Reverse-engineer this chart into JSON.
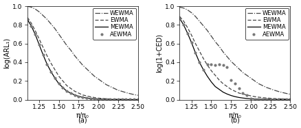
{
  "x": [
    1.1,
    1.15,
    1.2,
    1.25,
    1.3,
    1.35,
    1.4,
    1.45,
    1.5,
    1.55,
    1.6,
    1.65,
    1.7,
    1.75,
    1.8,
    1.85,
    1.9,
    1.95,
    2.0,
    2.05,
    2.1,
    2.15,
    2.2,
    2.25,
    2.3,
    2.35,
    2.4,
    2.45,
    2.5
  ],
  "ewma_a": [
    0.88,
    0.82,
    0.74,
    0.65,
    0.56,
    0.47,
    0.39,
    0.32,
    0.25,
    0.2,
    0.15,
    0.12,
    0.09,
    0.07,
    0.05,
    0.04,
    0.03,
    0.022,
    0.016,
    0.012,
    0.009,
    0.007,
    0.005,
    0.004,
    0.003,
    0.002,
    0.0015,
    0.001,
    0.0008
  ],
  "mewma_a": [
    0.86,
    0.79,
    0.7,
    0.59,
    0.48,
    0.38,
    0.3,
    0.23,
    0.17,
    0.13,
    0.09,
    0.07,
    0.05,
    0.035,
    0.025,
    0.017,
    0.012,
    0.008,
    0.006,
    0.004,
    0.003,
    0.002,
    0.0015,
    0.001,
    0.0008,
    0.0005,
    0.0004,
    0.0003,
    0.0002
  ],
  "wewma_a": [
    1.0,
    0.99,
    0.97,
    0.94,
    0.9,
    0.86,
    0.81,
    0.76,
    0.7,
    0.64,
    0.58,
    0.53,
    0.47,
    0.42,
    0.37,
    0.33,
    0.29,
    0.25,
    0.22,
    0.19,
    0.16,
    0.14,
    0.12,
    0.1,
    0.088,
    0.075,
    0.064,
    0.054,
    0.046
  ],
  "aewma_a": [
    0.86,
    0.79,
    0.7,
    0.59,
    0.48,
    0.38,
    0.3,
    0.23,
    0.17,
    0.13,
    0.09,
    0.07,
    0.05,
    0.035,
    0.025,
    0.017,
    0.012,
    0.008,
    0.006,
    0.004,
    0.003,
    0.002,
    0.0015,
    0.001,
    0.0008,
    0.0005,
    0.0004,
    0.0003,
    0.0002
  ],
  "ewma_b": [
    0.89,
    0.84,
    0.77,
    0.69,
    0.6,
    0.52,
    0.44,
    0.37,
    0.31,
    0.26,
    0.21,
    0.17,
    0.14,
    0.11,
    0.09,
    0.07,
    0.06,
    0.05,
    0.04,
    0.032,
    0.026,
    0.021,
    0.017,
    0.014,
    0.011,
    0.009,
    0.007,
    0.006,
    0.005
  ],
  "mewma_b": [
    0.87,
    0.8,
    0.71,
    0.61,
    0.5,
    0.4,
    0.32,
    0.25,
    0.19,
    0.14,
    0.11,
    0.08,
    0.06,
    0.044,
    0.032,
    0.023,
    0.017,
    0.012,
    0.009,
    0.007,
    0.005,
    0.004,
    0.003,
    0.002,
    0.0015,
    0.001,
    0.0008,
    0.0006,
    0.0005
  ],
  "wewma_b": [
    0.99,
    0.98,
    0.96,
    0.93,
    0.89,
    0.84,
    0.79,
    0.74,
    0.68,
    0.62,
    0.57,
    0.51,
    0.46,
    0.41,
    0.37,
    0.33,
    0.29,
    0.26,
    0.23,
    0.2,
    0.17,
    0.15,
    0.13,
    0.115,
    0.1,
    0.087,
    0.076,
    0.066,
    0.057
  ],
  "aewma_b_x": [
    1.1,
    1.15,
    1.2,
    1.25,
    1.3,
    1.35,
    1.4,
    1.45,
    1.5,
    1.55,
    1.6,
    1.65,
    1.7,
    1.75,
    1.8,
    1.85,
    1.9,
    1.95,
    2.0,
    2.05,
    2.1,
    2.15,
    2.2,
    2.25,
    2.3,
    2.35,
    2.4,
    2.45,
    2.5
  ],
  "aewma_b_y": [
    0.87,
    0.8,
    0.71,
    0.61,
    0.5,
    0.4,
    0.32,
    0.38,
    0.38,
    0.37,
    0.38,
    0.37,
    0.35,
    0.21,
    0.17,
    0.12,
    0.07,
    0.05,
    0.01,
    0.005,
    0.005,
    0.002,
    0.002,
    0.005,
    0.002,
    0.002,
    0.001,
    0.001,
    0.001
  ],
  "xlabel": "π/π₀",
  "ylabel_a": "log(ARL₁)",
  "ylabel_b": "log(1+CED)",
  "xlim": [
    1.1,
    2.5
  ],
  "ylim": [
    0.0,
    1.0
  ],
  "xticks": [
    1.25,
    1.5,
    1.75,
    2.0,
    2.25,
    2.5
  ],
  "yticks": [
    0.0,
    0.2,
    0.4,
    0.6,
    0.8,
    1.0
  ],
  "legend_labels": [
    "EWMA",
    "MEWMA",
    "WEWMA",
    "AEWMA"
  ],
  "caption_a": "(a)",
  "caption_b": "(b)",
  "fontsize": 6.5
}
